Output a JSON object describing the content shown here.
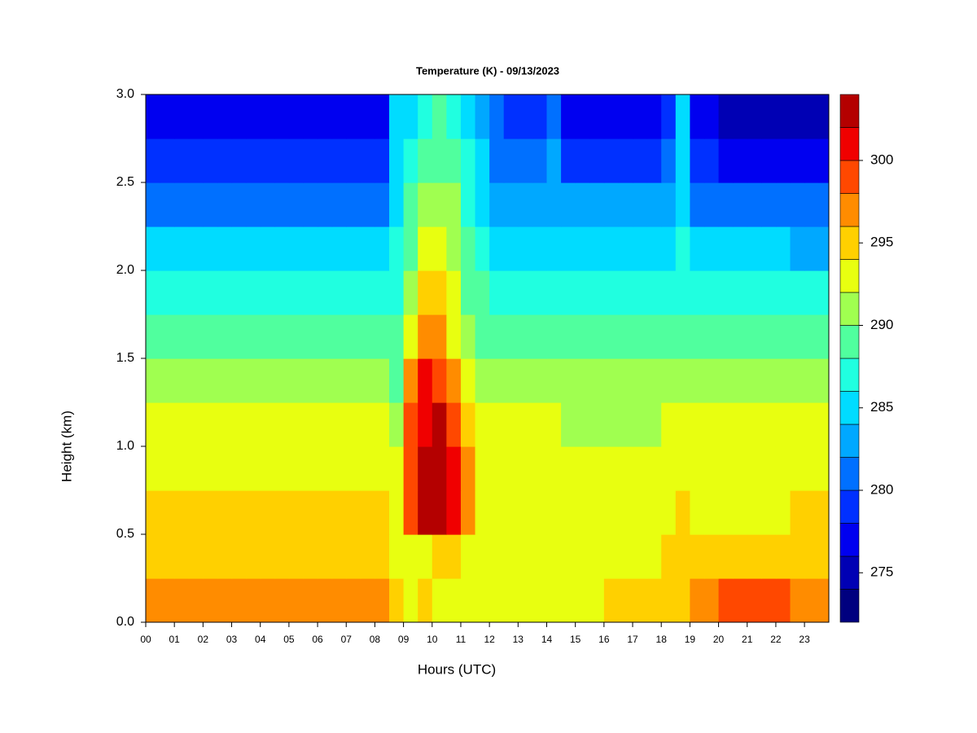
{
  "chart_data": {
    "type": "contour",
    "title": "Temperature (K) - 09/13/2023",
    "x_label": "Hours (UTC)",
    "y_label": "Height (km)",
    "xlim": [
      0,
      23.85
    ],
    "ylim": [
      0,
      3
    ],
    "xticks": [
      {
        "value": 0,
        "label": "00"
      },
      {
        "value": 1,
        "label": "01"
      },
      {
        "value": 2,
        "label": "02"
      },
      {
        "value": 3,
        "label": "03"
      },
      {
        "value": 4,
        "label": "04"
      },
      {
        "value": 5,
        "label": "05"
      },
      {
        "value": 6,
        "label": "06"
      },
      {
        "value": 7,
        "label": "07"
      },
      {
        "value": 8,
        "label": "08"
      },
      {
        "value": 9,
        "label": "09"
      },
      {
        "value": 10,
        "label": "10"
      },
      {
        "value": 11,
        "label": "11"
      },
      {
        "value": 12,
        "label": "12"
      },
      {
        "value": 13,
        "label": "13"
      },
      {
        "value": 14,
        "label": "14"
      },
      {
        "value": 15,
        "label": "15"
      },
      {
        "value": 16,
        "label": "16"
      },
      {
        "value": 17,
        "label": "17"
      },
      {
        "value": 18,
        "label": "18"
      },
      {
        "value": 19,
        "label": "19"
      },
      {
        "value": 20,
        "label": "20"
      },
      {
        "value": 21,
        "label": "21"
      },
      {
        "value": 22,
        "label": "22"
      },
      {
        "value": 23,
        "label": "23"
      }
    ],
    "yticks": [
      {
        "value": 0,
        "label": "0.0"
      },
      0.5,
      {
        "value": 1,
        "label": "1.0"
      },
      1.5,
      {
        "value": 2,
        "label": "2.0"
      },
      2.5,
      {
        "value": 3,
        "label": "3.0"
      }
    ],
    "levels": [
      272,
      274,
      276,
      278,
      280,
      282,
      284,
      286,
      288,
      290,
      292,
      294,
      296,
      298,
      300,
      302,
      304
    ],
    "colors": [
      "#00007f",
      "#0000b4",
      "#0000f0",
      "#0030ff",
      "#0070ff",
      "#00a8ff",
      "#00dcff",
      "#20ffe0",
      "#50ff9e",
      "#a0ff50",
      "#e8ff10",
      "#ffd000",
      "#ff8c00",
      "#ff4800",
      "#f00000",
      "#b40000",
      "#7f0000"
    ],
    "colorbar_ticks": [
      275,
      280,
      285,
      290,
      295,
      300
    ],
    "x": [
      0.25,
      0.75,
      1.25,
      1.75,
      2.25,
      2.75,
      3.25,
      3.75,
      4.25,
      4.75,
      5.25,
      5.75,
      6.25,
      6.75,
      7.25,
      7.75,
      8.25,
      8.75,
      9.25,
      9.75,
      10.25,
      10.75,
      11.25,
      11.75,
      12.25,
      12.75,
      13.25,
      13.75,
      14.25,
      14.75,
      15.25,
      15.75,
      16.25,
      16.75,
      17.25,
      17.75,
      18.25,
      18.75,
      19.25,
      19.75,
      20.25,
      20.75,
      21.25,
      21.75,
      22.25,
      22.75,
      23.25,
      23.75
    ],
    "y": [
      0.125,
      0.375,
      0.625,
      0.875,
      1.125,
      1.375,
      1.625,
      1.875,
      2.125,
      2.375,
      2.625,
      2.875
    ],
    "z": [
      [
        296.5,
        297,
        296.5,
        296.5,
        296.5,
        296.5,
        296.5,
        296.5,
        296.5,
        296.5,
        296.5,
        296.5,
        296.5,
        296.5,
        296.5,
        296.5,
        296.5,
        294,
        293,
        294,
        293,
        293,
        293,
        293,
        293,
        293,
        293,
        293,
        293,
        293,
        293,
        293,
        295,
        295,
        295,
        295,
        295,
        294,
        296,
        296,
        298.5,
        298.5,
        298.5,
        298.5,
        298.5,
        297,
        297,
        297
      ],
      [
        295,
        295,
        295,
        295,
        295,
        295,
        295,
        295,
        295,
        295,
        295,
        295,
        295,
        295,
        295,
        295,
        295,
        293,
        293,
        293,
        294,
        294,
        293,
        293,
        293,
        293,
        293,
        293,
        293,
        293,
        293,
        293,
        293.5,
        293.5,
        293.5,
        293.5,
        294,
        295,
        294,
        294,
        295,
        295,
        295,
        295,
        295,
        295,
        295,
        295
      ],
      [
        295,
        295,
        295,
        295,
        295,
        295,
        295,
        295,
        295,
        295,
        295,
        295,
        295,
        295,
        295,
        295,
        295,
        293,
        298,
        302,
        302,
        300,
        296,
        293,
        293,
        293,
        293,
        293,
        293,
        293,
        293,
        293,
        293,
        293,
        293,
        293,
        293,
        295,
        293,
        293,
        293.5,
        293.5,
        293.5,
        293.5,
        293.5,
        295,
        295,
        295
      ],
      [
        293.5,
        293.5,
        293.5,
        293.5,
        293.5,
        293.5,
        293.5,
        293.5,
        293.5,
        293.5,
        293.5,
        293.5,
        293.5,
        293.5,
        293.5,
        293.5,
        293.5,
        292,
        299,
        303,
        303,
        301,
        296,
        293,
        293,
        293,
        293,
        293,
        293,
        293,
        293,
        293,
        293,
        293,
        293,
        293,
        293,
        293,
        293,
        293,
        293,
        293,
        293,
        293,
        293,
        293.5,
        293.5,
        293.5
      ],
      [
        292,
        292,
        292,
        292,
        292,
        292,
        292,
        292,
        292,
        292,
        292,
        292,
        292,
        292,
        292,
        292,
        292,
        291,
        298,
        301,
        302,
        299,
        294,
        292,
        292,
        292,
        292,
        292,
        292,
        291.5,
        291.5,
        291.5,
        291.5,
        291.5,
        291.5,
        291.5,
        292,
        292,
        292,
        292,
        292,
        292,
        292,
        292,
        292,
        292,
        292,
        292
      ],
      [
        290.5,
        290.5,
        290.5,
        290.5,
        290.5,
        290.5,
        290.5,
        290.5,
        290.5,
        290.5,
        290.5,
        290.5,
        290.5,
        290.5,
        290.5,
        290.5,
        290.5,
        289,
        296,
        300,
        299,
        296,
        292,
        291,
        290,
        290,
        290,
        290,
        290,
        290,
        290,
        290,
        290,
        290,
        290,
        290,
        290,
        291,
        290,
        290,
        290,
        290,
        290,
        290,
        290,
        290,
        290,
        290
      ],
      [
        288.5,
        288.5,
        288.5,
        288.5,
        288.5,
        288.5,
        288.5,
        288.5,
        288.5,
        288.5,
        288.5,
        288.5,
        288.5,
        288.5,
        288.5,
        288.5,
        288.5,
        288,
        293,
        297,
        296,
        293,
        290,
        289,
        288.5,
        288.5,
        288.5,
        288.5,
        288,
        288,
        288,
        288,
        288,
        288,
        288,
        288,
        288,
        289,
        288,
        288,
        288,
        288,
        288,
        288,
        288,
        288,
        288,
        288
      ],
      [
        286.5,
        286.5,
        286.5,
        286.5,
        286.5,
        286.5,
        286.5,
        286.5,
        286.5,
        286.5,
        286.5,
        286.5,
        286.5,
        286.5,
        286.5,
        286.5,
        286.5,
        287,
        291,
        294,
        294,
        292,
        289,
        288,
        287,
        287,
        287,
        287,
        287,
        286,
        286,
        286,
        286,
        286,
        286,
        286,
        286,
        287,
        286,
        286,
        286,
        286,
        286,
        286,
        286,
        286,
        286,
        286
      ],
      [
        284,
        284,
        284,
        284,
        284,
        284,
        284,
        284,
        284,
        284,
        284,
        284,
        284,
        284,
        284,
        284,
        284,
        286,
        289,
        292,
        292,
        291,
        288,
        286,
        285,
        285,
        285,
        285,
        285,
        284,
        284,
        284,
        284,
        284,
        284,
        284,
        285,
        286,
        284,
        284,
        284,
        284,
        284,
        284,
        284,
        283.5,
        283.5,
        283.5
      ],
      [
        281.5,
        281.5,
        281.5,
        281.5,
        281.5,
        281.5,
        281.5,
        281.5,
        281.5,
        281.5,
        281.5,
        281.5,
        281.5,
        281.5,
        281.5,
        281.5,
        281.5,
        285,
        288,
        290,
        290,
        290,
        287,
        285,
        283,
        283,
        283,
        283,
        283,
        282,
        282,
        282,
        282,
        282,
        282,
        282,
        283,
        285,
        281,
        281,
        281,
        281,
        281,
        281,
        281,
        281,
        281,
        281
      ],
      [
        278.5,
        278.5,
        278.5,
        278.5,
        278.5,
        278.5,
        278.5,
        278.5,
        278.5,
        278.5,
        278.5,
        278.5,
        278.5,
        278.5,
        278.5,
        278.5,
        278.5,
        285,
        286,
        289,
        289,
        288,
        286,
        284,
        281,
        281,
        281,
        281,
        282,
        279,
        279,
        279,
        279,
        279,
        279,
        279,
        281,
        284,
        278,
        278,
        277.5,
        277.5,
        277.5,
        277.5,
        277.5,
        277,
        277,
        277
      ],
      [
        276.5,
        276.5,
        276.5,
        276.5,
        276.5,
        276.5,
        276.5,
        276.5,
        276.5,
        276.5,
        276.5,
        276.5,
        276.5,
        276.5,
        276.5,
        276.5,
        277,
        285,
        285,
        287,
        288,
        287,
        285,
        283,
        280,
        279,
        278.5,
        278,
        280,
        277,
        277,
        277,
        277,
        277,
        277,
        277,
        279,
        284,
        276,
        276,
        275.5,
        275.5,
        275.5,
        275.5,
        275.5,
        275,
        275,
        275
      ]
    ]
  }
}
